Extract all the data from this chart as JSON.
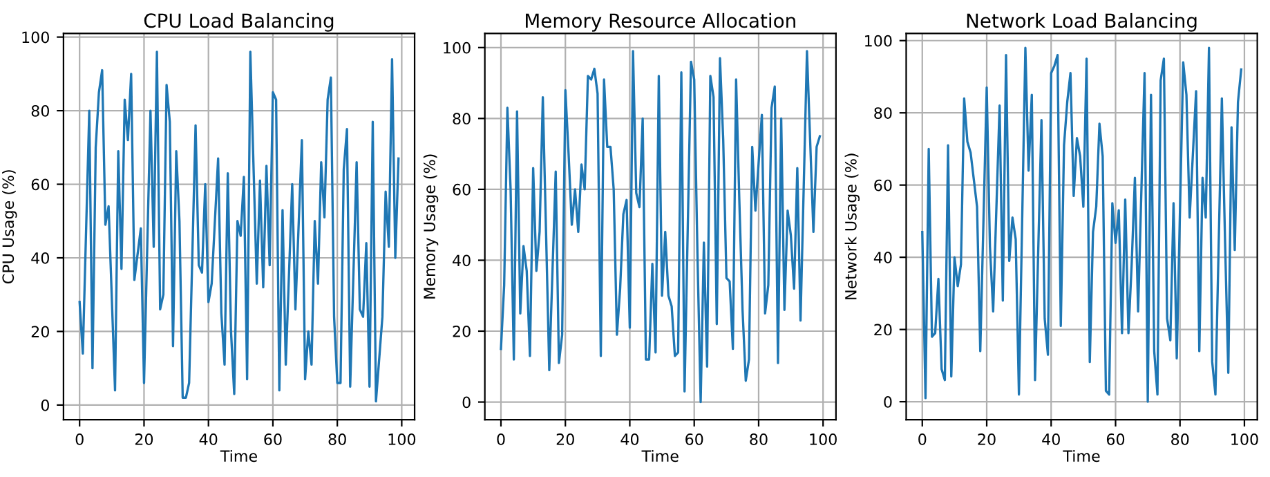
{
  "chart_data": [
    {
      "type": "line",
      "title": "CPU Load Balancing",
      "xlabel": "Time",
      "ylabel": "CPU Usage (%)",
      "xlim": [
        -5,
        104
      ],
      "ylim": [
        -4,
        101
      ],
      "xticks": [
        0,
        20,
        40,
        60,
        80,
        100
      ],
      "yticks": [
        0,
        20,
        40,
        60,
        80,
        100
      ],
      "grid": true,
      "series": [
        {
          "color": "#1f77b4",
          "x": [
            0,
            1,
            3,
            4,
            5,
            6,
            7,
            8,
            9,
            11,
            12,
            13,
            14,
            15,
            16,
            17,
            19,
            20,
            22,
            23,
            24,
            25,
            26,
            27,
            28,
            29,
            30,
            31,
            32,
            33,
            34,
            36,
            37,
            38,
            39,
            40,
            41,
            43,
            44,
            45,
            46,
            47,
            48,
            49,
            50,
            51,
            52,
            53,
            55,
            56,
            57,
            58,
            59,
            60,
            61,
            62,
            63,
            64,
            66,
            67,
            69,
            70,
            71,
            72,
            73,
            74,
            75,
            76,
            77,
            78,
            79,
            80,
            81,
            82,
            83,
            84,
            86,
            87,
            88,
            89,
            90,
            91,
            92,
            94,
            95,
            96,
            97,
            98,
            99
          ],
          "values": [
            28,
            14,
            80,
            10,
            70,
            85,
            91,
            49,
            54,
            4,
            69,
            37,
            83,
            72,
            90,
            34,
            48,
            6,
            80,
            43,
            96,
            26,
            30,
            87,
            77,
            16,
            69,
            50,
            2,
            2,
            6,
            76,
            38,
            36,
            60,
            28,
            33,
            67,
            25,
            11,
            63,
            20,
            3,
            50,
            46,
            62,
            7,
            96,
            33,
            61,
            32,
            65,
            38,
            85,
            83,
            4,
            53,
            11,
            60,
            26,
            72,
            7,
            20,
            11,
            50,
            33,
            66,
            51,
            83,
            89,
            24,
            6,
            6,
            64,
            75,
            5,
            66,
            26,
            24,
            44,
            5,
            77,
            1,
            24,
            58,
            43,
            94,
            40,
            67
          ]
        }
      ]
    },
    {
      "type": "line",
      "title": "Memory Resource Allocation",
      "xlabel": "Time",
      "ylabel": "Memory Usage (%)",
      "xlim": [
        -5,
        104
      ],
      "ylim": [
        -5,
        104
      ],
      "xticks": [
        0,
        20,
        40,
        60,
        80,
        100
      ],
      "yticks": [
        0,
        20,
        40,
        60,
        80,
        100
      ],
      "grid": true,
      "series": [
        {
          "color": "#1f77b4",
          "x": [
            0,
            1,
            2,
            3,
            4,
            5,
            6,
            7,
            8,
            9,
            10,
            11,
            12,
            13,
            14,
            15,
            17,
            18,
            19,
            20,
            21,
            22,
            23,
            24,
            25,
            26,
            27,
            28,
            29,
            30,
            31,
            32,
            33,
            34,
            35,
            36,
            37,
            38,
            39,
            40,
            41,
            42,
            43,
            44,
            45,
            46,
            47,
            48,
            49,
            50,
            51,
            52,
            53,
            54,
            55,
            56,
            57,
            59,
            60,
            61,
            62,
            63,
            64,
            65,
            66,
            67,
            68,
            69,
            70,
            71,
            72,
            73,
            74,
            75,
            76,
            77,
            78,
            79,
            81,
            82,
            83,
            84,
            85,
            86,
            87,
            88,
            89,
            90,
            91,
            92,
            93,
            95,
            97,
            98,
            99
          ],
          "values": [
            15,
            33,
            83,
            60,
            12,
            82,
            25,
            44,
            37,
            13,
            66,
            37,
            48,
            86,
            48,
            9,
            65,
            11,
            19,
            88,
            70,
            50,
            60,
            48,
            67,
            60,
            92,
            91,
            94,
            87,
            13,
            91,
            72,
            72,
            60,
            19,
            32,
            53,
            57,
            21,
            99,
            59,
            55,
            80,
            12,
            12,
            39,
            14,
            92,
            30,
            48,
            30,
            27,
            13,
            14,
            93,
            3,
            96,
            91,
            42,
            0,
            45,
            10,
            92,
            86,
            22,
            97,
            74,
            35,
            34,
            15,
            91,
            57,
            26,
            6,
            12,
            72,
            54,
            81,
            25,
            33,
            83,
            89,
            11,
            80,
            26,
            54,
            47,
            32,
            66,
            23,
            99,
            48,
            72,
            75
          ]
        }
      ]
    },
    {
      "type": "line",
      "title": "Network Load Balancing",
      "xlabel": "Time",
      "ylabel": "Network Usage (%)",
      "xlim": [
        -5,
        104
      ],
      "ylim": [
        -5,
        102
      ],
      "xticks": [
        0,
        20,
        40,
        60,
        80,
        100
      ],
      "yticks": [
        0,
        20,
        40,
        60,
        80,
        100
      ],
      "grid": true,
      "series": [
        {
          "color": "#1f77b4",
          "x": [
            0,
            1,
            2,
            3,
            4,
            5,
            6,
            7,
            8,
            9,
            10,
            11,
            12,
            13,
            14,
            15,
            17,
            18,
            20,
            21,
            22,
            24,
            25,
            26,
            27,
            28,
            29,
            30,
            32,
            33,
            34,
            35,
            37,
            38,
            39,
            40,
            41,
            42,
            43,
            44,
            45,
            46,
            47,
            48,
            49,
            50,
            51,
            52,
            53,
            54,
            55,
            56,
            57,
            58,
            59,
            60,
            61,
            62,
            63,
            64,
            65,
            66,
            67,
            69,
            70,
            71,
            72,
            73,
            74,
            75,
            76,
            77,
            78,
            79,
            81,
            82,
            83,
            85,
            86,
            87,
            88,
            89,
            90,
            91,
            93,
            94,
            95,
            96,
            97,
            98,
            99
          ],
          "values": [
            47,
            1,
            70,
            18,
            19,
            34,
            9,
            6,
            71,
            7,
            40,
            32,
            38,
            84,
            72,
            69,
            54,
            14,
            87,
            43,
            25,
            82,
            28,
            96,
            39,
            51,
            45,
            2,
            98,
            64,
            85,
            6,
            78,
            23,
            13,
            91,
            93,
            96,
            21,
            71,
            83,
            91,
            57,
            73,
            68,
            54,
            95,
            11,
            47,
            54,
            77,
            68,
            3,
            2,
            55,
            44,
            53,
            19,
            56,
            19,
            38,
            62,
            25,
            91,
            0,
            85,
            14,
            2,
            89,
            95,
            23,
            17,
            55,
            12,
            94,
            85,
            51,
            86,
            14,
            62,
            51,
            98,
            11,
            2,
            84,
            44,
            8,
            76,
            42,
            83,
            92
          ]
        }
      ]
    }
  ]
}
